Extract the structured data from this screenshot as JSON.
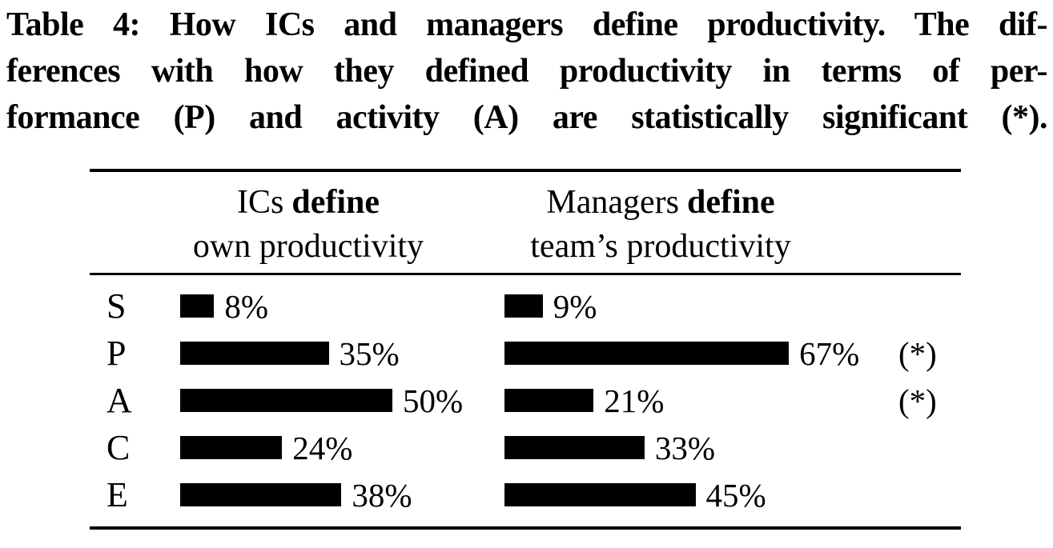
{
  "caption": {
    "lines": [
      "Table 4: How ICs and managers define productivity. The dif-",
      "ferences with how they defined productivity in terms of per-",
      "formance (P) and activity (A) are statistically significant (*)."
    ]
  },
  "table": {
    "columns": [
      {
        "header_prefix": "ICs",
        "header_bold": "define",
        "header_line2": "own productivity"
      },
      {
        "header_prefix": "Managers",
        "header_bold": "define",
        "header_line2": "team’s productivity"
      }
    ],
    "rows": [
      {
        "label": "S",
        "ic_value": 8,
        "ic_label": "8%",
        "mgr_value": 9,
        "mgr_label": "9%",
        "significance": ""
      },
      {
        "label": "P",
        "ic_value": 35,
        "ic_label": "35%",
        "mgr_value": 67,
        "mgr_label": "67%",
        "significance": "(*)"
      },
      {
        "label": "A",
        "ic_value": 50,
        "ic_label": "50%",
        "mgr_value": 21,
        "mgr_label": "21%",
        "significance": "(*)"
      },
      {
        "label": "C",
        "ic_value": 24,
        "ic_label": "24%",
        "mgr_value": 33,
        "mgr_label": "33%",
        "significance": ""
      },
      {
        "label": "E",
        "ic_value": 38,
        "ic_label": "38%",
        "mgr_value": 45,
        "mgr_label": "45%",
        "significance": ""
      }
    ]
  },
  "chart_data": {
    "type": "bar",
    "title": "Table 4: How ICs and managers define productivity",
    "categories": [
      "S",
      "P",
      "A",
      "C",
      "E"
    ],
    "series": [
      {
        "name": "ICs define own productivity",
        "values": [
          8,
          35,
          50,
          24,
          38
        ]
      },
      {
        "name": "Managers define team’s productivity",
        "values": [
          9,
          67,
          21,
          33,
          45
        ]
      }
    ],
    "annotations": [
      {
        "category": "P",
        "mark": "(*)",
        "meaning": "statistically significant difference"
      },
      {
        "category": "A",
        "mark": "(*)",
        "meaning": "statistically significant difference"
      }
    ],
    "value_unit": "%",
    "orientation": "horizontal",
    "bar_color": "#000000",
    "xlabel": "",
    "ylabel": "",
    "xlim": [
      0,
      70
    ],
    "grid": false,
    "legend_position": "column headers"
  }
}
